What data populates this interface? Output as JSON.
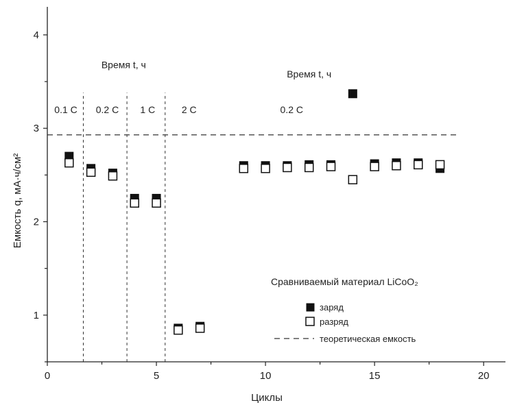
{
  "chart_data": {
    "type": "scatter",
    "xlabel": "Циклы",
    "ylabel": "Емкость q, мА·ч/см²",
    "xlim": [
      0,
      21
    ],
    "ylim": [
      0.5,
      4.3
    ],
    "x_ticks": [
      0,
      5,
      10,
      15,
      20
    ],
    "y_ticks": [
      1,
      2,
      3,
      4
    ],
    "grid": false,
    "series": [
      {
        "name": "заряд",
        "marker": "filled-square",
        "color": "#111111",
        "x": [
          1,
          2,
          3,
          4,
          5,
          6,
          7,
          9,
          10,
          11,
          12,
          13,
          14,
          15,
          16,
          17,
          18
        ],
        "y": [
          2.7,
          2.57,
          2.52,
          2.25,
          2.25,
          0.86,
          0.88,
          2.6,
          2.6,
          2.6,
          2.61,
          2.61,
          3.37,
          2.62,
          2.63,
          2.63,
          2.57
        ]
      },
      {
        "name": "разряд",
        "marker": "open-square",
        "color": "#111111",
        "x": [
          1,
          2,
          3,
          4,
          5,
          6,
          7,
          9,
          10,
          11,
          12,
          13,
          14,
          15,
          16,
          17,
          18
        ],
        "y": [
          2.63,
          2.53,
          2.49,
          2.2,
          2.2,
          0.84,
          0.86,
          2.57,
          2.57,
          2.58,
          2.58,
          2.59,
          2.45,
          2.59,
          2.6,
          2.61,
          2.61
        ]
      }
    ],
    "reference_line": {
      "name": "теоретическая емкость",
      "y": 2.93,
      "x_range": [
        0,
        18.8
      ],
      "style": "dashed"
    },
    "dividers_x": [
      1.65,
      3.65,
      5.4
    ],
    "rate_labels": [
      {
        "text": "0.1 С",
        "x": 0.85
      },
      {
        "text": "0.2 С",
        "x": 2.75
      },
      {
        "text": "1 С",
        "x": 4.6
      },
      {
        "text": "2 С",
        "x": 6.5
      },
      {
        "text": "0.2 С",
        "x": 11.2
      }
    ],
    "rate_label_y": 3.2,
    "time_labels": [
      {
        "text": "Время t, ч",
        "x": 3.5,
        "y": 3.68
      },
      {
        "text": "Время t, ч",
        "x": 12.0,
        "y": 3.58
      }
    ],
    "legend": {
      "placement": "bottom-right",
      "title": "Сравниваемый материал LiCoO₂",
      "entries": [
        "заряд",
        "разряд",
        "теоретическая емкость"
      ]
    }
  }
}
